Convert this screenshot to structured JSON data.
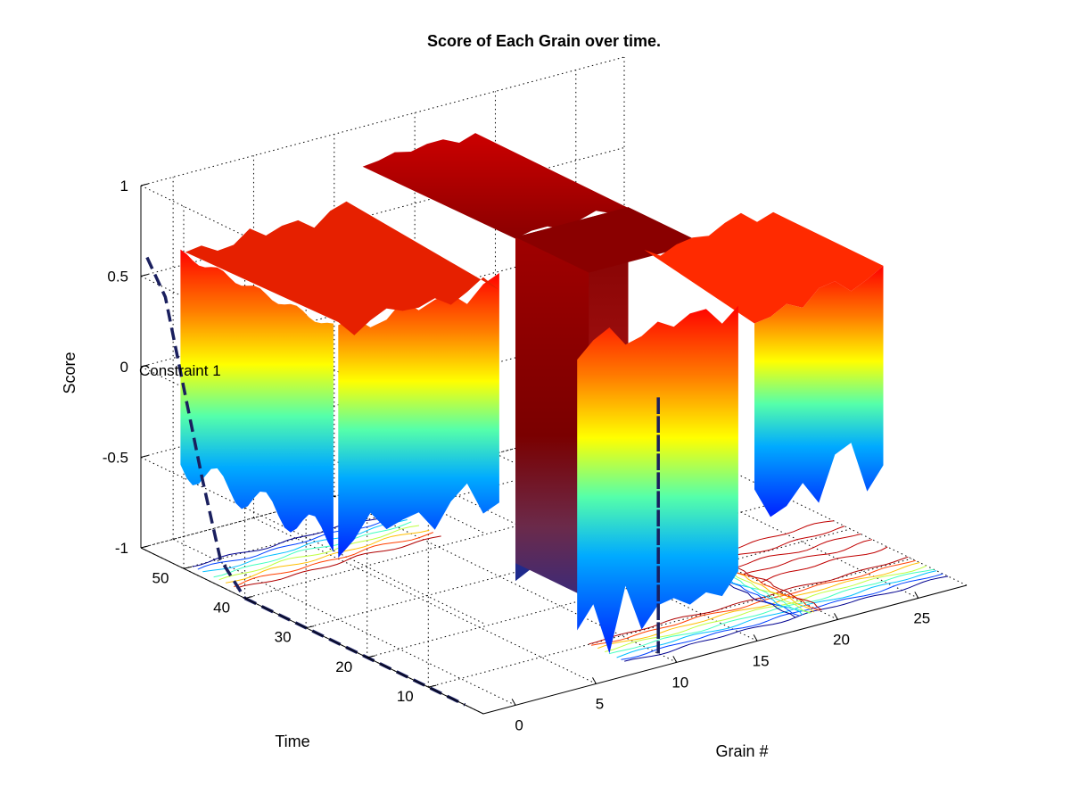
{
  "chart_data": {
    "type": "surface",
    "title": "Score of Each Grain over time.",
    "xlabel": "Grain #",
    "ylabel": "Time",
    "zlabel": "Score",
    "xlim": [
      -2,
      28
    ],
    "ylim": [
      1,
      57
    ],
    "zlim": [
      -1,
      1
    ],
    "x_ticks": [
      0,
      5,
      10,
      15,
      20,
      25
    ],
    "y_ticks": [
      10,
      20,
      30,
      40,
      50
    ],
    "z_ticks": [
      -1,
      -0.5,
      0,
      0.5,
      1
    ],
    "grid": true,
    "colormap": "jet",
    "contour_on_floor": true,
    "annotation": "Constraint 1",
    "constraint_line": {
      "style": "dashed",
      "color": "#1a1f5e",
      "segments": [
        {
          "x": [
            -2,
            -2,
            -2,
            -2,
            -2,
            -2
          ],
          "y": [
            56,
            53,
            50,
            47,
            44,
            40
          ],
          "z": [
            0.62,
            0.45,
            0.0,
            -0.45,
            -0.85,
            -1.0
          ]
        },
        {
          "x": [
            -2,
            -2,
            -2,
            -2
          ],
          "y": [
            40,
            28,
            14,
            4
          ],
          "z": [
            -1.0,
            -1.0,
            -1.0,
            -1.0
          ]
        },
        {
          "x": [
            10,
            10,
            10,
            10,
            10,
            10,
            10
          ],
          "y": [
            4,
            4,
            4,
            4,
            4,
            4,
            4
          ],
          "z": [
            -1.0,
            -0.5,
            0.2,
            0.42,
            0.0,
            -0.6,
            -1.0
          ]
        }
      ]
    },
    "series": [
      {
        "name": "",
        "x": [
          0,
          1,
          2,
          3,
          4,
          5,
          6,
          7,
          8,
          9,
          10,
          11,
          12,
          13,
          14,
          15,
          16,
          17,
          18,
          19,
          20,
          21,
          22,
          23,
          24,
          25,
          26,
          27
        ],
        "score_early": [
          -0.85,
          -0.8,
          -0.9,
          -0.75,
          -0.85,
          -0.8,
          -0.9,
          -0.95,
          -0.8,
          -0.85,
          -0.75,
          0.85,
          0.85,
          0.85,
          0.85,
          0.85,
          0.85,
          0.85,
          0.85,
          -0.6,
          -0.55,
          -0.55,
          -0.5,
          -0.5,
          -0.45,
          -0.45,
          -0.45,
          -0.45
        ],
        "score_late": [
          0.6,
          0.6,
          0.62,
          0.6,
          0.62,
          0.6,
          0.62,
          0.62,
          0.6,
          0.62,
          0.62,
          0.85,
          0.85,
          0.85,
          0.85,
          0.85,
          0.85,
          0.85,
          0.85,
          0.55,
          0.55,
          0.58,
          0.58,
          0.6,
          0.6,
          0.62,
          0.62,
          0.62
        ]
      }
    ]
  }
}
